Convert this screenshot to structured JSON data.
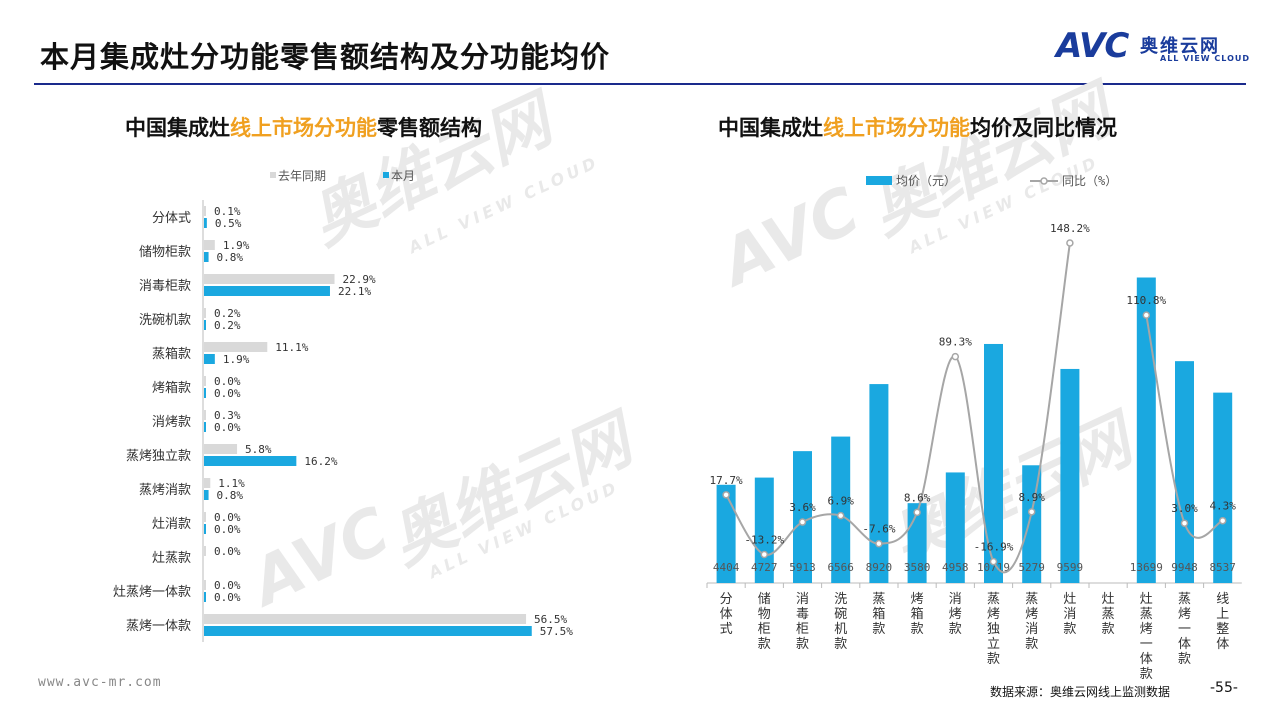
{
  "page": {
    "title": "本月集成灶分功能零售额结构及分功能均价",
    "logo_main": "AVC",
    "logo_cn": "奥维云网",
    "logo_en": "ALL VIEW CLOUD",
    "footer_url": "www.avc-mr.com",
    "footer_source": "数据来源：奥维云网线上监测数据",
    "page_number": "-55-",
    "watermark_cn": "奥维云网",
    "watermark_en": "ALL VIEW CLOUD",
    "watermark_mark": "AVC"
  },
  "chart_data": [
    {
      "type": "bar",
      "orientation": "horizontal",
      "title_parts": [
        "中国集成灶",
        "线上市场分功能",
        "零售额结构"
      ],
      "categories": [
        "分体式",
        "储物柜款",
        "消毒柜款",
        "洗碗机款",
        "蒸箱款",
        "烤箱款",
        "消烤款",
        "蒸烤独立款",
        "蒸烤消款",
        "灶消款",
        "灶蒸款",
        "灶蒸烤一体款",
        "蒸烤一体款"
      ],
      "series": [
        {
          "name": "去年同期",
          "color": "#d9d9d9",
          "values": [
            0.1,
            1.9,
            22.9,
            0.2,
            11.1,
            0.0,
            0.3,
            5.8,
            1.1,
            0.0,
            0.0,
            0.0,
            56.5
          ],
          "labels": [
            "0.1%",
            "1.9%",
            "22.9%",
            "0.2%",
            "11.1%",
            "0.0%",
            "0.3%",
            "5.8%",
            "1.1%",
            "0.0%",
            "0.0%",
            "0.0%",
            "56.5%"
          ]
        },
        {
          "name": "本月",
          "color": "#1aa8e0",
          "values": [
            0.5,
            0.8,
            22.1,
            0.2,
            1.9,
            0.0,
            0.0,
            16.2,
            0.8,
            0.0,
            null,
            0.0,
            57.5
          ],
          "labels": [
            "0.5%",
            "0.8%",
            "22.1%",
            "0.2%",
            "1.9%",
            "0.0%",
            "0.0%",
            "16.2%",
            "0.8%",
            "0.0%",
            "",
            "0.0%",
            "57.5%"
          ]
        }
      ],
      "unit": "%"
    },
    {
      "type": "bar+line",
      "title_parts": [
        "中国集成灶",
        "线上市场分功能",
        "均价及同比情况"
      ],
      "categories": [
        "分体式",
        "储物柜款",
        "消毒柜款",
        "洗碗机款",
        "蒸箱款",
        "烤箱款",
        "消烤款",
        "蒸烤独立款",
        "蒸烤消款",
        "灶消款",
        "灶蒸款",
        "灶蒸烤一体款",
        "蒸烤一体款",
        "线上整体"
      ],
      "bar_series": {
        "name": "均价（元）",
        "color": "#1aa8e0",
        "values": [
          4404,
          4727,
          5913,
          6566,
          8920,
          3580,
          4958,
          10719,
          5279,
          9599,
          null,
          13699,
          9948,
          8537
        ],
        "labels": [
          "4404",
          "4727",
          "5913",
          "6566",
          "8920",
          "3580",
          "4958",
          "10719",
          "5279",
          "9599",
          "",
          "13699",
          "9948",
          "8537"
        ]
      },
      "line_series": {
        "name": "同比（%）",
        "color": "#a6a6a6",
        "values": [
          17.7,
          -13.2,
          3.6,
          6.9,
          -7.6,
          8.6,
          89.3,
          -16.9,
          8.9,
          148.2,
          null,
          110.8,
          3.0,
          4.3
        ],
        "labels": [
          "17.7%",
          "-13.2%",
          "3.6%",
          "6.9%",
          "-7.6%",
          "8.6%",
          "89.3%",
          "-16.9%",
          "8.9%",
          "148.2%",
          "",
          "110.8%",
          "3.0%",
          "4.3%"
        ]
      }
    }
  ]
}
